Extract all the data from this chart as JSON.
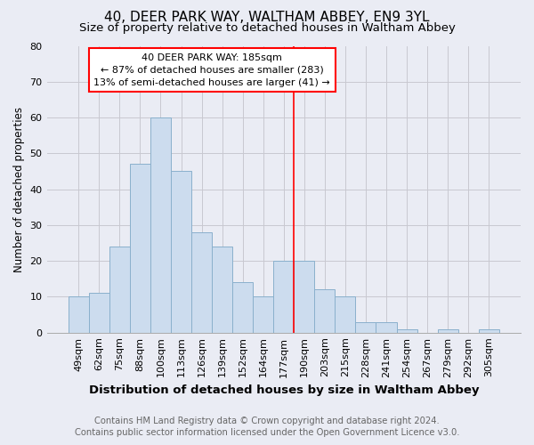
{
  "title": "40, DEER PARK WAY, WALTHAM ABBEY, EN9 3YL",
  "subtitle": "Size of property relative to detached houses in Waltham Abbey",
  "xlabel": "Distribution of detached houses by size in Waltham Abbey",
  "ylabel": "Number of detached properties",
  "footer_line1": "Contains HM Land Registry data © Crown copyright and database right 2024.",
  "footer_line2": "Contains public sector information licensed under the Open Government Licence v3.0.",
  "categories": [
    "49sqm",
    "62sqm",
    "75sqm",
    "88sqm",
    "100sqm",
    "113sqm",
    "126sqm",
    "139sqm",
    "152sqm",
    "164sqm",
    "177sqm",
    "190sqm",
    "203sqm",
    "215sqm",
    "228sqm",
    "241sqm",
    "254sqm",
    "267sqm",
    "279sqm",
    "292sqm",
    "305sqm"
  ],
  "values": [
    10,
    11,
    24,
    47,
    60,
    45,
    28,
    24,
    14,
    10,
    20,
    20,
    12,
    10,
    3,
    3,
    1,
    0,
    1,
    0,
    1
  ],
  "bar_color": "#ccdcee",
  "bar_edge_color": "#8ab0cc",
  "ylim": [
    0,
    80
  ],
  "yticks": [
    0,
    10,
    20,
    30,
    40,
    50,
    60,
    70,
    80
  ],
  "grid_color": "#c8c8d0",
  "bg_color": "#eaecf4",
  "property_label": "40 DEER PARK WAY: 185sqm",
  "annotation_line1": "← 87% of detached houses are smaller (283)",
  "annotation_line2": "13% of semi-detached houses are larger (41) →",
  "vline_color": "red",
  "annotation_box_color": "white",
  "annotation_border_color": "red",
  "title_fontsize": 11,
  "subtitle_fontsize": 9.5,
  "xlabel_fontsize": 9.5,
  "ylabel_fontsize": 8.5,
  "tick_fontsize": 8,
  "footer_fontsize": 7.2,
  "annot_fontsize": 8
}
